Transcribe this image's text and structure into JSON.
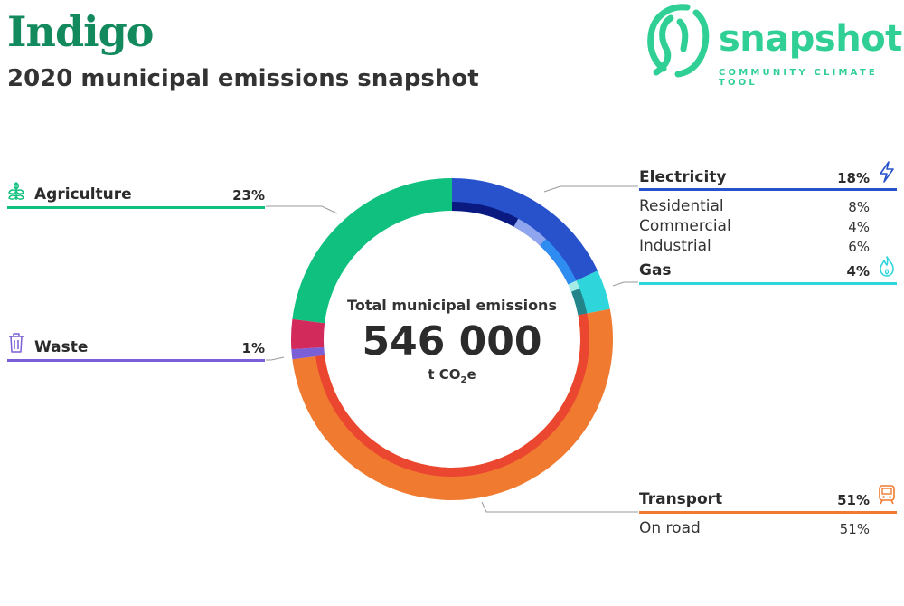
{
  "header": {
    "city": "Indigo",
    "subtitle": "2020 municipal emissions snapshot"
  },
  "brand": {
    "name": "snapshot",
    "tagline": "COMMUNITY CLIMATE TOOL",
    "color": "#2fcf95"
  },
  "center": {
    "title": "Total municipal emissions",
    "value": "546 000",
    "unit_prefix": "t CO",
    "unit_sub": "2",
    "unit_suffix": "e"
  },
  "chart_data": {
    "type": "pie",
    "title": "Total municipal emissions",
    "total": 546000,
    "unit": "t CO2e",
    "categories": [
      {
        "name": "Electricity",
        "percent": 18,
        "color": "#2752cc",
        "icon": "lightning-icon",
        "subsectors": [
          {
            "name": "Residential",
            "percent": 8,
            "color": "#0a1a80"
          },
          {
            "name": "Commercial",
            "percent": 4,
            "color": "#8fa6ee"
          },
          {
            "name": "Industrial",
            "percent": 6,
            "color": "#2f8cf0"
          }
        ]
      },
      {
        "name": "Gas",
        "percent": 4,
        "color": "#2ed6dc",
        "icon": "flame-icon",
        "subsectors": [
          {
            "name": "",
            "percent": 1,
            "color": "#a6ece6"
          },
          {
            "name": "",
            "percent": 3,
            "color": "#23848a"
          }
        ]
      },
      {
        "name": "Transport",
        "percent": 51,
        "color": "#f07a30",
        "icon": "train-icon",
        "subsectors": [
          {
            "name": "On road",
            "percent": 51,
            "color": "#ea4630"
          }
        ]
      },
      {
        "name": "Waste",
        "percent": 1,
        "color": "#7a5fd6",
        "icon": "trash-icon",
        "subsectors": []
      },
      {
        "name": "",
        "percent": 3,
        "color": "#d22a5a",
        "subsectors": []
      },
      {
        "name": "Agriculture",
        "percent": 23,
        "color": "#10c07e",
        "icon": "leaf-icon",
        "subsectors": []
      }
    ]
  },
  "labels": {
    "electricity": {
      "label": "Electricity",
      "pct": "18%",
      "color": "#2752cc",
      "subs": [
        {
          "label": "Residential",
          "pct": "8%"
        },
        {
          "label": "Commercial",
          "pct": "4%"
        },
        {
          "label": "Industrial",
          "pct": "6%"
        }
      ]
    },
    "gas": {
      "label": "Gas",
      "pct": "4%",
      "color": "#2ed6dc"
    },
    "transport": {
      "label": "Transport",
      "pct": "51%",
      "color": "#f07a30",
      "subs": [
        {
          "label": "On road",
          "pct": "51%"
        }
      ]
    },
    "agriculture": {
      "label": "Agriculture",
      "pct": "23%",
      "color": "#10c07e"
    },
    "waste": {
      "label": "Waste",
      "pct": "1%",
      "color": "#7a5fd6"
    }
  }
}
